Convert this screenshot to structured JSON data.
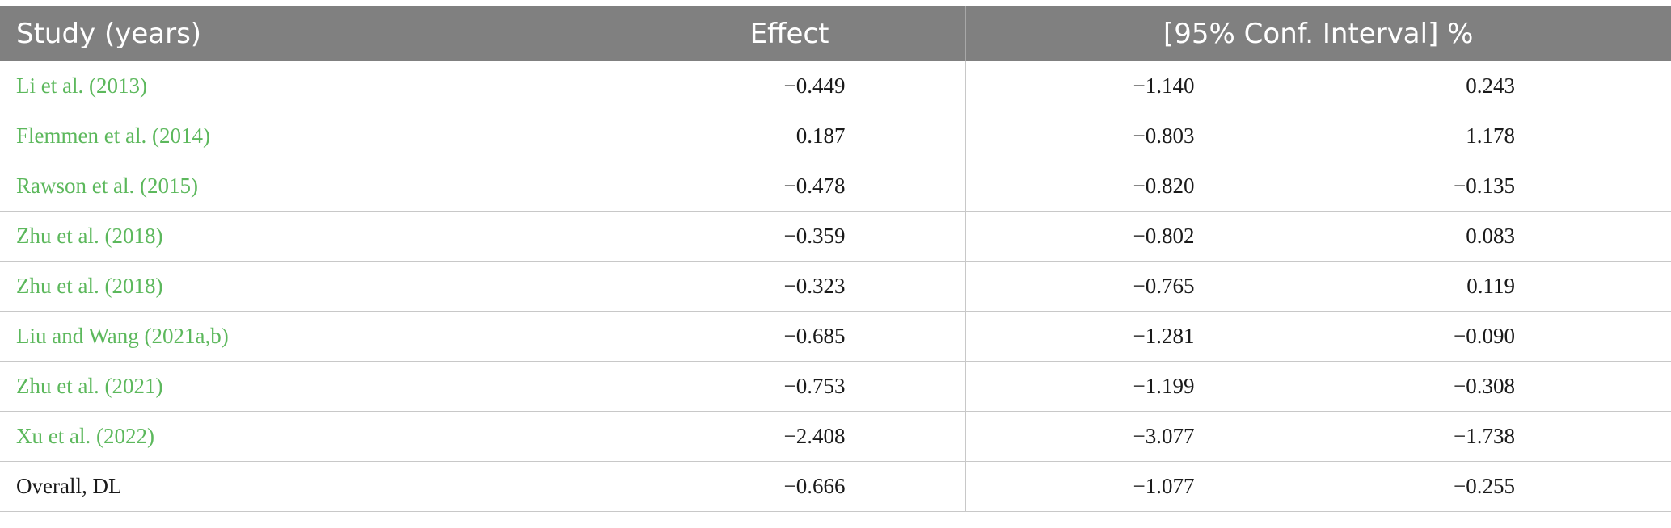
{
  "table": {
    "headers": {
      "study": "Study (years)",
      "effect": "Effect",
      "ci": "[95% Conf. Interval] %"
    },
    "link_color": "#5cb85c",
    "header_bg": "#808080",
    "rows": [
      {
        "study": "Li et al. (2013)",
        "effect": "−0.449",
        "lower": "−1.140",
        "upper": "0.243"
      },
      {
        "study": "Flemmen et al. (2014)",
        "effect": "0.187",
        "lower": "−0.803",
        "upper": "1.178"
      },
      {
        "study": "Rawson et al. (2015)",
        "effect": "−0.478",
        "lower": "−0.820",
        "upper": "−0.135"
      },
      {
        "study": "Zhu et al. (2018)",
        "effect": "−0.359",
        "lower": "−0.802",
        "upper": "0.083"
      },
      {
        "study": "Zhu et al. (2018)",
        "effect": "−0.323",
        "lower": "−0.765",
        "upper": "0.119"
      },
      {
        "study": "Liu and Wang (2021a,b)",
        "effect": "−0.685",
        "lower": "−1.281",
        "upper": "−0.090"
      },
      {
        "study": "Zhu et al. (2021)",
        "effect": "−0.753",
        "lower": "−1.199",
        "upper": "−0.308"
      },
      {
        "study": "Xu et al. (2022)",
        "effect": "−2.408",
        "lower": "−3.077",
        "upper": "−1.738"
      }
    ],
    "overall": {
      "study": "Overall, DL",
      "effect": "−0.666",
      "lower": "−1.077",
      "upper": "−0.255"
    }
  }
}
